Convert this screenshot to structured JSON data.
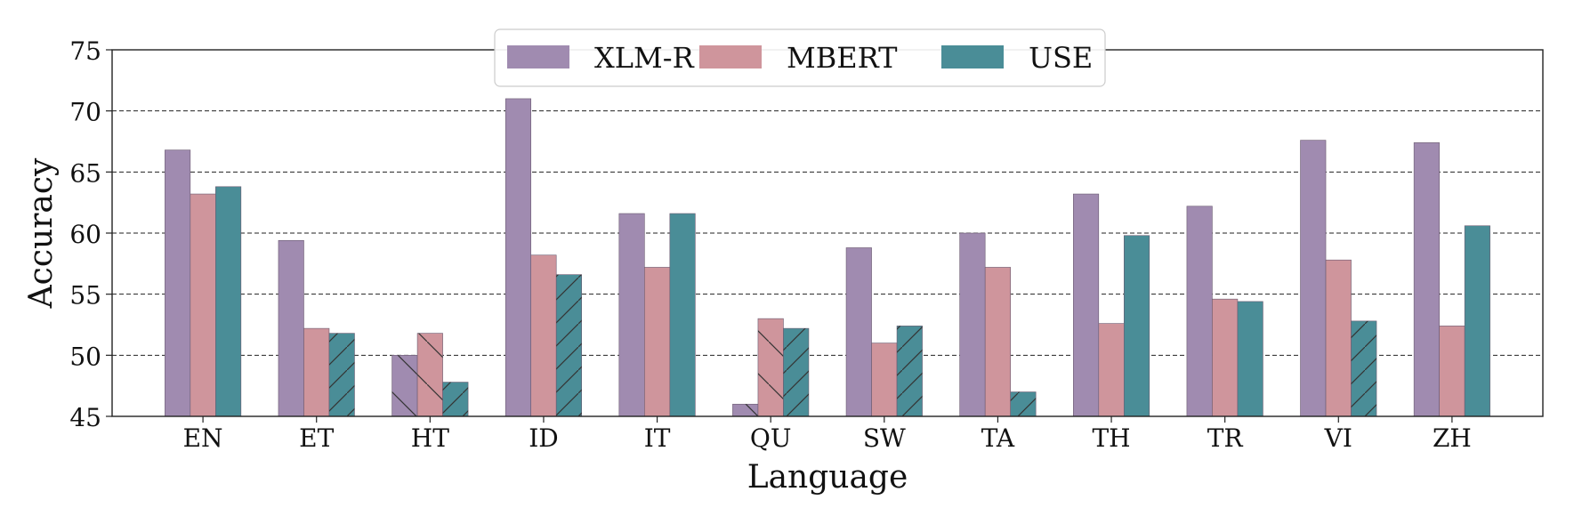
{
  "chart_data": {
    "type": "bar",
    "title": "",
    "xlabel": "Language",
    "ylabel": "Accuracy",
    "ylim": [
      45,
      75
    ],
    "yticks": [
      45,
      50,
      55,
      60,
      65,
      70,
      75
    ],
    "grid": "horizontal-dashed",
    "legend_position": "top-center",
    "categories": [
      "EN",
      "ET",
      "HT",
      "ID",
      "IT",
      "QU",
      "SW",
      "TA",
      "TH",
      "TR",
      "VI",
      "ZH"
    ],
    "series": [
      {
        "name": "XLM-R",
        "color": "#a08bb0",
        "values": [
          66.8,
          59.4,
          50.0,
          71.0,
          61.6,
          46.0,
          58.8,
          60.0,
          63.2,
          62.2,
          67.6,
          67.4
        ],
        "hatched": [
          false,
          false,
          true,
          false,
          false,
          true,
          false,
          false,
          false,
          false,
          false,
          false
        ]
      },
      {
        "name": "MBERT",
        "color": "#cf959c",
        "values": [
          63.2,
          52.2,
          51.8,
          58.2,
          57.2,
          53.0,
          51.0,
          57.2,
          52.6,
          54.6,
          57.8,
          52.4
        ],
        "hatched": [
          false,
          false,
          true,
          false,
          false,
          true,
          false,
          false,
          false,
          false,
          false,
          false
        ]
      },
      {
        "name": "USE",
        "color": "#4a8d97",
        "values": [
          63.8,
          51.8,
          47.8,
          56.6,
          61.6,
          52.2,
          52.4,
          47.0,
          59.8,
          54.4,
          52.8,
          60.6
        ],
        "hatched": [
          false,
          true,
          true,
          true,
          false,
          true,
          true,
          true,
          false,
          false,
          true,
          false
        ]
      }
    ]
  }
}
